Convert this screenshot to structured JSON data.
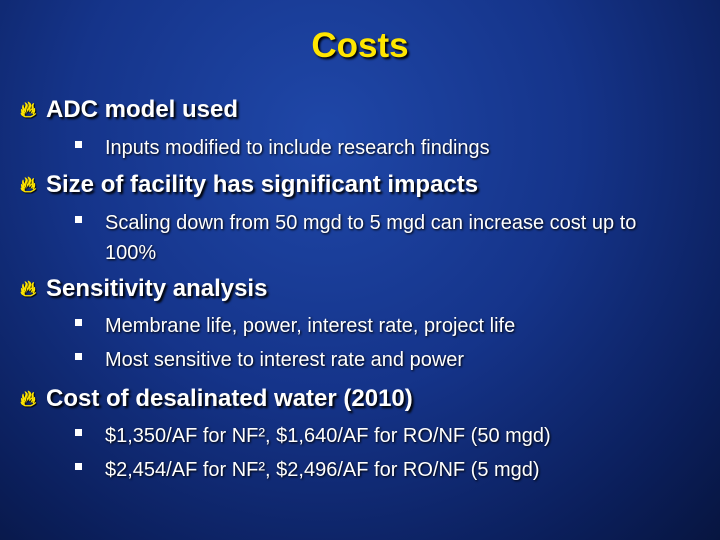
{
  "slide": {
    "title": "Costs",
    "bullet_icon": "flame-bullet-icon",
    "sub_bullet_icon": "square-bullet-icon",
    "colors": {
      "title": "#ffe600",
      "background": "#15348a",
      "text": "#ffffff"
    },
    "items": [
      {
        "text": "ADC model used",
        "subitems": [
          "Inputs modified to include research findings"
        ]
      },
      {
        "text": "Size of facility has significant impacts",
        "subitems": [
          "Scaling down from 50 mgd to 5 mgd can increase cost up to 100%"
        ]
      },
      {
        "text": "Sensitivity analysis",
        "subitems": [
          "Membrane life, power, interest rate, project life",
          "Most sensitive to interest rate and power"
        ]
      },
      {
        "text": "Cost of desalinated water (2010)",
        "subitems": [
          "$1,350/AF for NF², $1,640/AF for RO/NF (50 mgd)",
          "$2,454/AF for NF², $2,496/AF for RO/NF (5 mgd)"
        ]
      }
    ]
  }
}
